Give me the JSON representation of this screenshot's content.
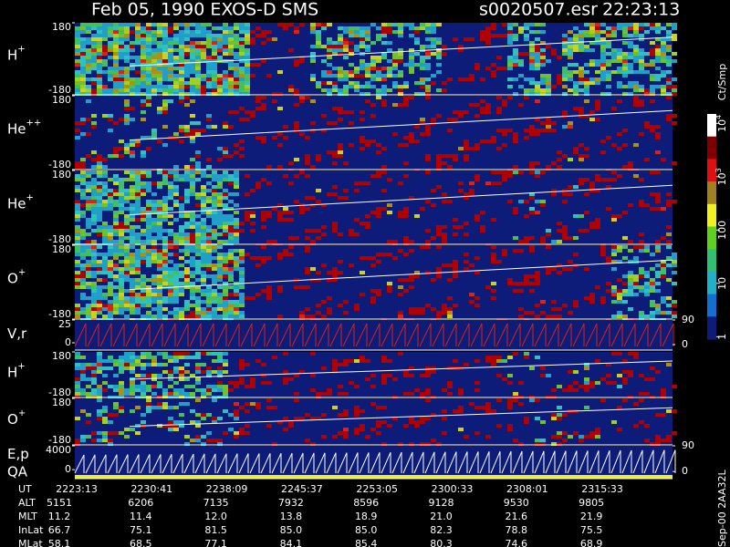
{
  "chart_data": {
    "type": "spectrogram",
    "title": "Feb 05, 1990   EXOS-D SMS",
    "file": "s0020507.esr",
    "time": "22:23:13",
    "panels": [
      {
        "label": "H",
        "sup": "+",
        "ylim": [
          -180,
          180
        ],
        "yticks": [
          180,
          -180
        ]
      },
      {
        "label": "He",
        "sup": "++",
        "ylim": [
          -180,
          180
        ],
        "yticks": [
          180,
          -180
        ]
      },
      {
        "label": "He",
        "sup": "+",
        "ylim": [
          -180,
          180
        ],
        "yticks": [
          180,
          -180
        ]
      },
      {
        "label": "O",
        "sup": "+",
        "ylim": [
          -180,
          180
        ],
        "yticks": [
          180,
          -180
        ]
      },
      {
        "label": "V,r",
        "ylim": [
          -8,
          25
        ],
        "yticks": [
          25,
          0
        ],
        "y2lim": [
          -20,
          90
        ],
        "y2ticks": [
          90,
          0
        ]
      },
      {
        "label": "H",
        "sup": "+",
        "ylim": [
          -180,
          180
        ],
        "yticks": [
          180,
          -180
        ]
      },
      {
        "label": "O",
        "sup": "+",
        "ylim": [
          -180,
          180
        ],
        "yticks": [
          180,
          -180
        ]
      },
      {
        "label": "E,p",
        "label2": "QA",
        "ylim": [
          -1500,
          4000
        ],
        "yticks": [
          4000,
          0
        ],
        "y2lim": [
          -25,
          90
        ],
        "y2ticks": [
          90,
          0
        ]
      }
    ],
    "colorbar": {
      "title": "Ct/Smp",
      "log": true,
      "clim": [
        0.9,
        15000
      ],
      "ticks": [
        {
          "value": 10000,
          "label": "10",
          "exponent": "4"
        },
        {
          "value": 1000,
          "label": "10",
          "exponent": "3"
        },
        100,
        10,
        1
      ]
    },
    "table": {
      "labels": [
        "UT",
        "ALT",
        "MLT",
        "InLat",
        "MLat"
      ],
      "rows": [
        [
          "2223:13",
          "2230:41",
          "2238:09",
          "2245:37",
          "2253:05",
          "2300:33",
          "2308:01",
          "2315:33"
        ],
        [
          "5151",
          "6206",
          "7135",
          "7932",
          "8596",
          "9128",
          "9530",
          "9805"
        ],
        [
          "11.2",
          "11.4",
          "12.0",
          "13.8",
          "18.9",
          "21.0",
          "21.6",
          "21.9"
        ],
        [
          "66.7",
          "75.1",
          "81.5",
          "85.0",
          "85.0",
          "82.3",
          "78.8",
          "75.5"
        ],
        [
          "58.1",
          "68.5",
          "77.1",
          "84.1",
          "85.4",
          "80.3",
          "74.6",
          "68.9"
        ]
      ]
    },
    "footer": "Sep-00 2AA32L"
  }
}
